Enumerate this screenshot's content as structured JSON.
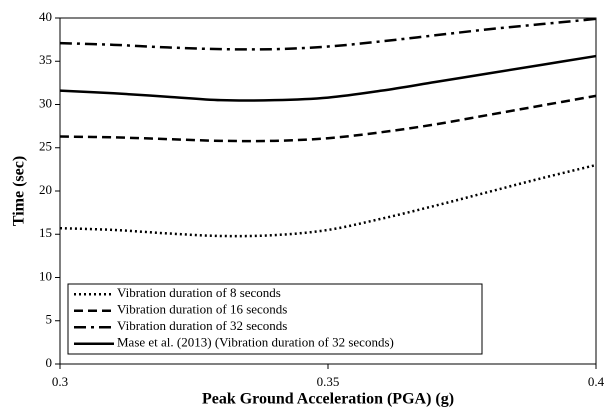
{
  "chart_data": {
    "type": "line",
    "x_label": "Peak Ground Acceleration (PGA) (g)",
    "y_label": "Time (sec)",
    "x": [
      0.3,
      0.31,
      0.32,
      0.33,
      0.34,
      0.35,
      0.36,
      0.37,
      0.38,
      0.39,
      0.4
    ],
    "series": [
      {
        "name": "Vibration duration of 8 seconds",
        "color": "#000000",
        "dash": "dotted",
        "values": [
          15.7,
          15.5,
          15.1,
          14.8,
          14.9,
          15.5,
          16.8,
          18.3,
          19.9,
          21.5,
          23.0
        ]
      },
      {
        "name": "Vibration duration of 16 seconds",
        "color": "#000000",
        "dash": "dashed",
        "values": [
          26.3,
          26.2,
          26.0,
          25.8,
          25.8,
          26.1,
          26.8,
          27.7,
          28.8,
          29.9,
          31.0
        ]
      },
      {
        "name": "Vibration duration of 32 seconds",
        "color": "#000000",
        "dash": "dashdot",
        "values": [
          37.1,
          36.9,
          36.6,
          36.4,
          36.4,
          36.7,
          37.3,
          38.0,
          38.7,
          39.3,
          39.9
        ]
      },
      {
        "name": "Mase et al. (2013) (Vibration duration of 32 seconds)",
        "color": "#000000",
        "dash": "solid",
        "values": [
          31.6,
          31.3,
          30.9,
          30.5,
          30.5,
          30.8,
          31.6,
          32.6,
          33.6,
          34.6,
          35.6
        ]
      }
    ],
    "xlim": [
      0.3,
      0.4
    ],
    "xticks": [
      0.3,
      0.35,
      0.4
    ],
    "ylim": [
      0,
      40
    ],
    "yticks": [
      0,
      5,
      10,
      15,
      20,
      25,
      30,
      35,
      40
    ],
    "grid": false,
    "legend": "lower left"
  }
}
